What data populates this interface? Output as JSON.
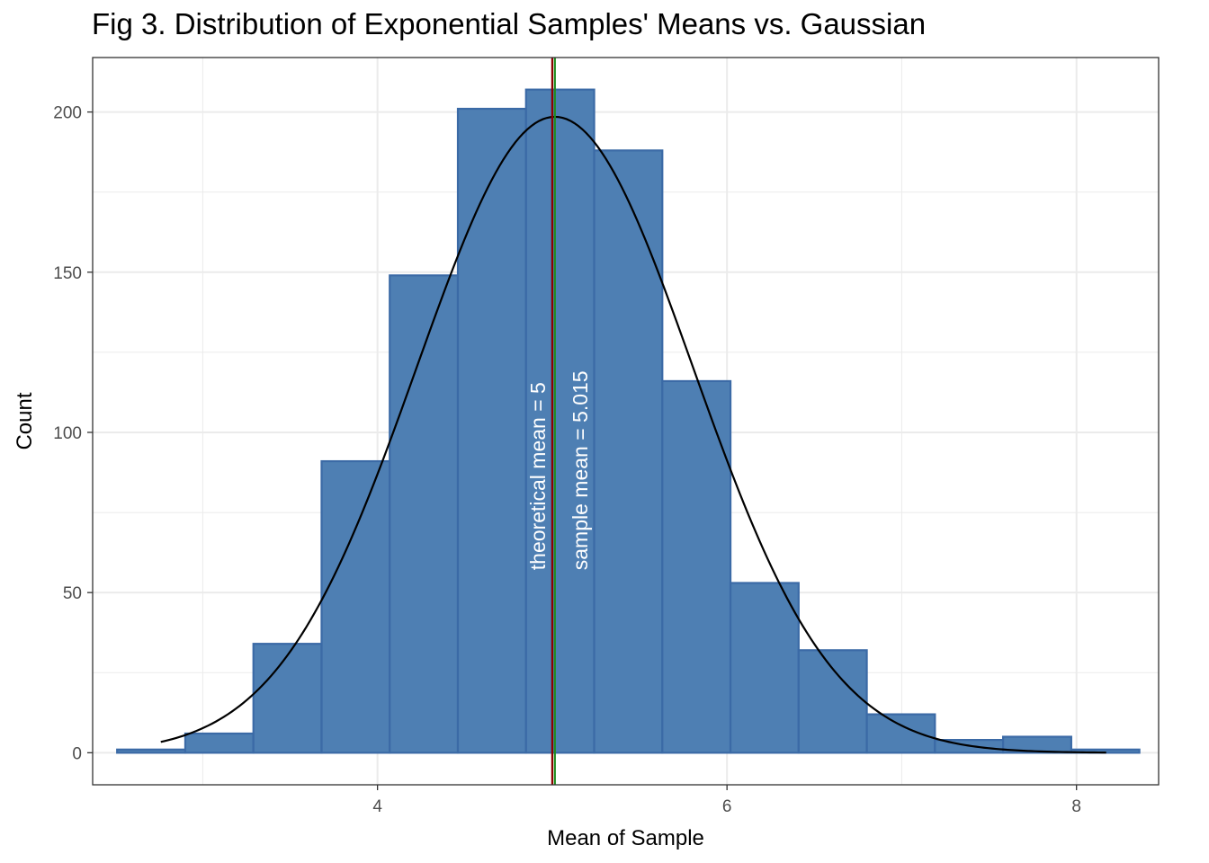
{
  "chart_data": {
    "type": "bar",
    "title": "Fig 3. Distribution of Exponential Samples' Means vs. Gaussian",
    "xlabel": "Mean of Sample",
    "ylabel": "Count",
    "xlim": [
      2.37,
      8.47
    ],
    "ylim": [
      -10,
      217
    ],
    "x_ticks": [
      4,
      6,
      8
    ],
    "y_ticks": [
      0,
      50,
      100,
      150,
      200
    ],
    "x_minor_ticks": [
      3,
      5,
      7
    ],
    "y_minor_ticks": [
      25,
      75,
      125,
      175
    ],
    "grid": true,
    "bins": [
      {
        "x0": 2.51,
        "x1": 2.9,
        "count": 1
      },
      {
        "x0": 2.9,
        "x1": 3.29,
        "count": 6
      },
      {
        "x0": 3.29,
        "x1": 3.68,
        "count": 34
      },
      {
        "x0": 3.68,
        "x1": 4.07,
        "count": 91
      },
      {
        "x0": 4.07,
        "x1": 4.46,
        "count": 149
      },
      {
        "x0": 4.46,
        "x1": 4.85,
        "count": 201
      },
      {
        "x0": 4.85,
        "x1": 5.24,
        "count": 207
      },
      {
        "x0": 5.24,
        "x1": 5.63,
        "count": 188
      },
      {
        "x0": 5.63,
        "x1": 6.02,
        "count": 116
      },
      {
        "x0": 6.02,
        "x1": 6.41,
        "count": 53
      },
      {
        "x0": 6.41,
        "x1": 6.8,
        "count": 32
      },
      {
        "x0": 6.8,
        "x1": 7.19,
        "count": 12
      },
      {
        "x0": 7.19,
        "x1": 7.58,
        "count": 4
      },
      {
        "x0": 7.58,
        "x1": 7.97,
        "count": 5
      },
      {
        "x0": 7.97,
        "x1": 8.36,
        "count": 1
      }
    ],
    "gaussian_curve": {
      "mean": 5.015,
      "sd": 0.79,
      "peak": 198.5,
      "x_range": [
        2.76,
        8.17
      ]
    },
    "vlines": [
      {
        "x": 5.0,
        "color": "#8b0000",
        "label": "theoretical mean = 5"
      },
      {
        "x": 5.015,
        "color": "#1e8c1e",
        "label": "sample mean = 5.015"
      }
    ],
    "colors": {
      "bar_fill": "#4e7fb3",
      "bar_stroke": "#3b6aa6",
      "curve": "#000000",
      "grid": "#ebebeb",
      "annotation_text": "#ffffff"
    }
  }
}
